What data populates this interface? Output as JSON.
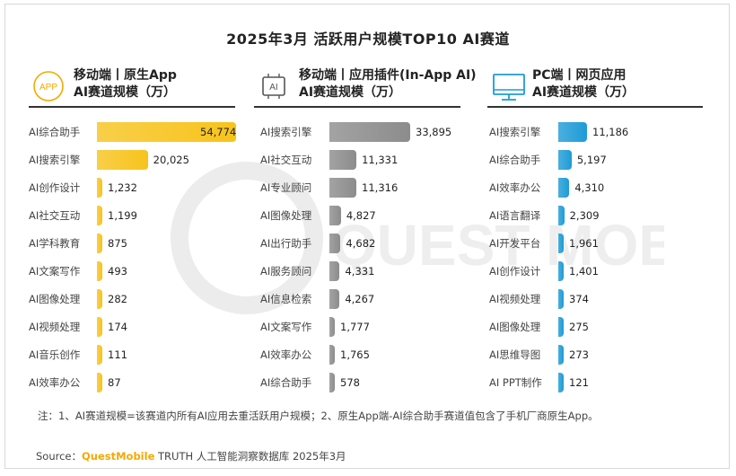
{
  "title": "2025年3月 活跃用户规模TOP10 AI赛道",
  "panels": [
    {
      "title_line1": "移动端丨原生App",
      "title_line2": "AI赛道规模（万）",
      "icon": "app-icon",
      "icon_text": "APP"
    },
    {
      "title_line1": "移动端丨应用插件(In-App AI)",
      "title_line2": "AI赛道规模（万）",
      "icon": "ai-chip-icon",
      "icon_text": "AI"
    },
    {
      "title_line1": "PC端丨网页应用",
      "title_line2": "AI赛道规模（万）",
      "icon": "monitor-icon"
    }
  ],
  "chart_data": [
    {
      "type": "bar",
      "orientation": "horizontal",
      "color": "#f7c31c",
      "categories": [
        "AI综合助手",
        "AI搜索引擎",
        "AI创作设计",
        "AI社交互动",
        "AI学科教育",
        "AI文案写作",
        "AI图像处理",
        "AI视频处理",
        "AI音乐创作",
        "AI效率办公"
      ],
      "values": [
        54774,
        20025,
        1232,
        1199,
        875,
        493,
        282,
        174,
        111,
        87
      ],
      "value_labels": [
        "54,774",
        "20,025",
        "1,232",
        "1,199",
        "875",
        "493",
        "282",
        "174",
        "111",
        "87"
      ]
    },
    {
      "type": "bar",
      "orientation": "horizontal",
      "color": "#8c8c8c",
      "categories": [
        "AI搜索引擎",
        "AI社交互动",
        "AI专业顾问",
        "AI图像处理",
        "AI出行助手",
        "AI服务顾问",
        "AI信息检索",
        "AI文案写作",
        "AI效率办公",
        "AI综合助手"
      ],
      "values": [
        33895,
        11331,
        11316,
        4827,
        4682,
        4331,
        4267,
        1777,
        1765,
        578
      ],
      "value_labels": [
        "33,895",
        "11,331",
        "11,316",
        "4,827",
        "4,682",
        "4,331",
        "4,267",
        "1,777",
        "1,765",
        "578"
      ]
    },
    {
      "type": "bar",
      "orientation": "horizontal",
      "color": "#1e9bd7",
      "categories": [
        "AI搜索引擎",
        "AI综合助手",
        "AI效率办公",
        "AI语言翻译",
        "AI开发平台",
        "AI创作设计",
        "AI视频处理",
        "AI图像处理",
        "AI思维导图",
        "AI PPT制作"
      ],
      "values": [
        11186,
        5197,
        4310,
        2309,
        1961,
        1401,
        374,
        275,
        273,
        121
      ],
      "value_labels": [
        "11,186",
        "5,197",
        "4,310",
        "2,309",
        "1,961",
        "1,401",
        "374",
        "275",
        "273",
        "121"
      ]
    }
  ],
  "note": "注：1、AI赛道规模=该赛道内所有AI应用去重活跃用户规模；2、原生App端-AI综合助手赛道值包含了手机厂商原生App。",
  "source": {
    "label": "Source：",
    "brand": "QuestMobile",
    "rest": " TRUTH 人工智能洞察数据库 2025年3月"
  },
  "watermark": "QUEST MOBILE"
}
